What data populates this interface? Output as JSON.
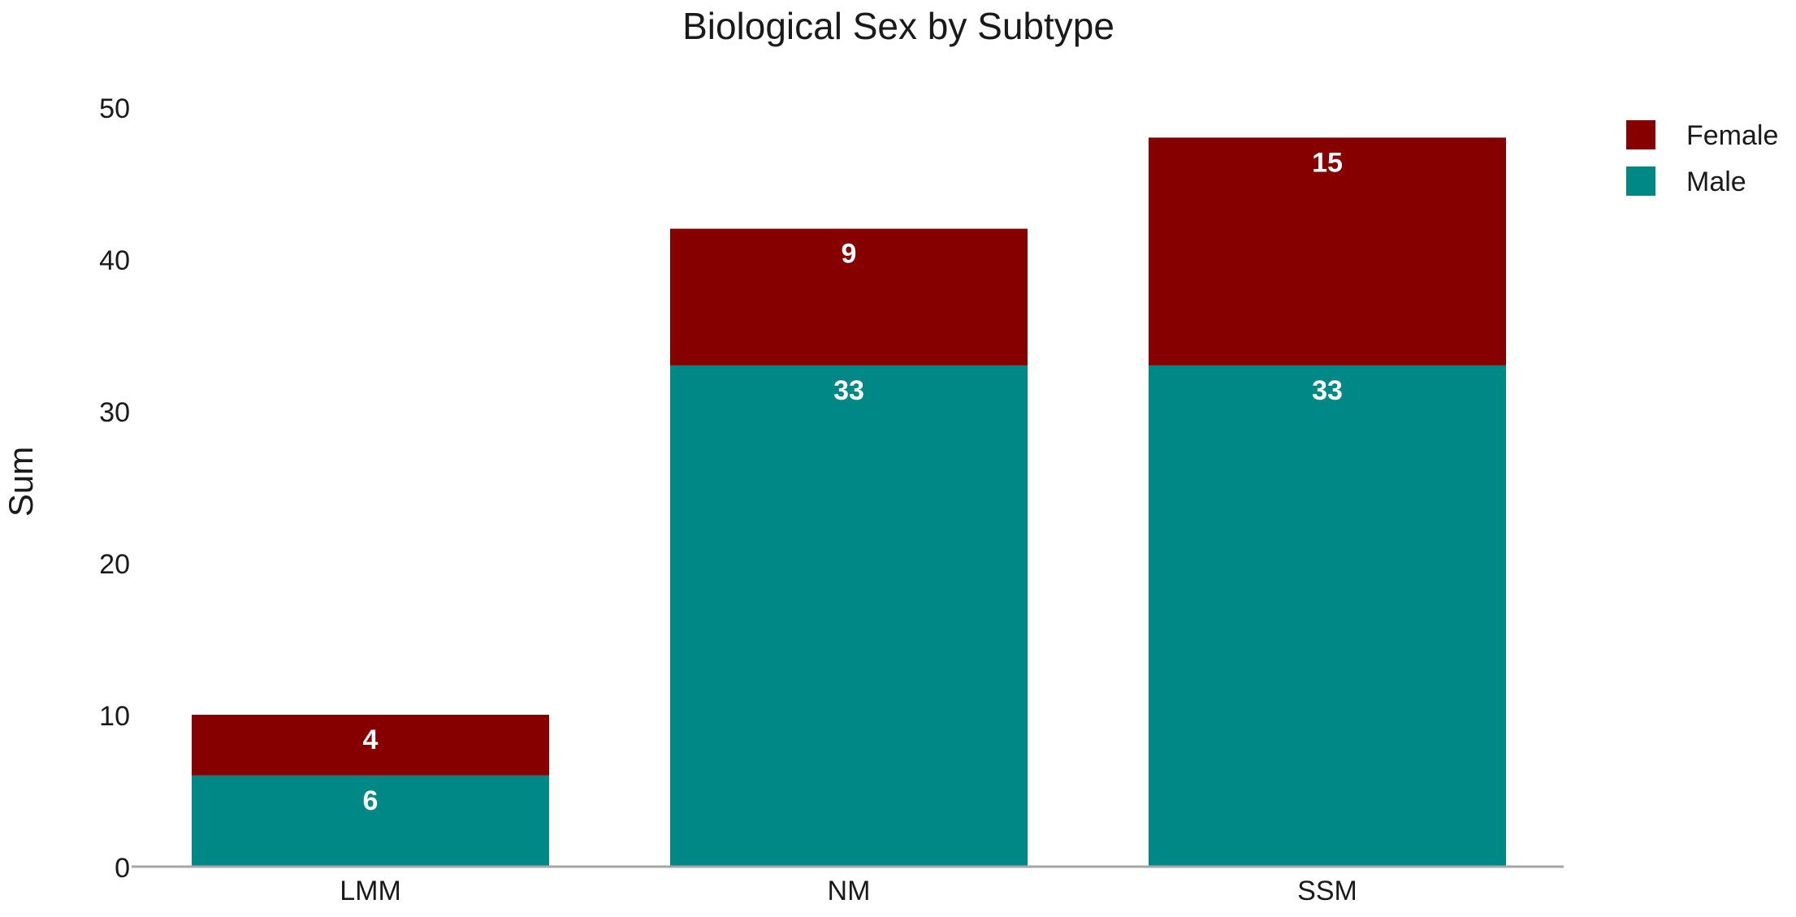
{
  "chart_data": {
    "type": "bar",
    "stacked": true,
    "title": "Biological Sex by Subtype",
    "xlabel": "",
    "ylabel": "Sum",
    "categories": [
      "LMM",
      "NM",
      "SSM"
    ],
    "series": [
      {
        "name": "Male",
        "values": [
          6,
          33,
          33
        ],
        "color": "#008886"
      },
      {
        "name": "Female",
        "values": [
          4,
          9,
          15
        ],
        "color": "#860000"
      }
    ],
    "ylim": [
      0,
      50
    ],
    "yticks": [
      0,
      10,
      20,
      30,
      40,
      50
    ],
    "legend": {
      "position": "top-right",
      "entries": [
        "Female",
        "Male"
      ]
    },
    "grid": false,
    "data_labels": true
  }
}
